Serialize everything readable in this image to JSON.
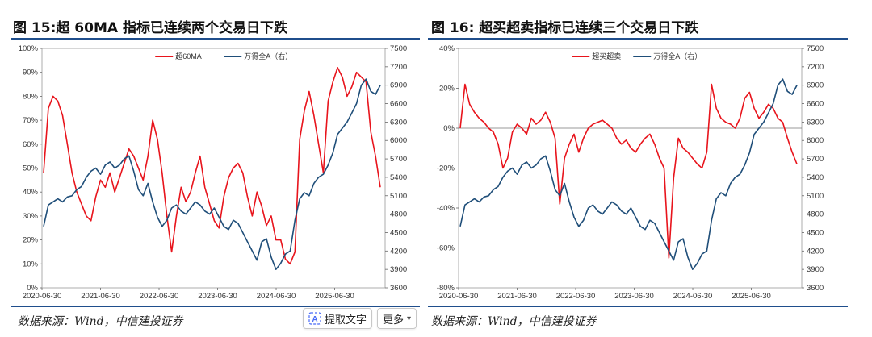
{
  "panels": [
    {
      "title": "图 15:超 60MA 指标已连续两个交易日下跌",
      "source": "数据来源：Wind，中信建投证券",
      "chart_data": {
        "type": "line",
        "left_axis_ticks": [
          "0%",
          "10%",
          "20%",
          "30%",
          "40%",
          "50%",
          "60%",
          "70%",
          "80%",
          "90%",
          "100%"
        ],
        "left_ylim": [
          0,
          100
        ],
        "right_axis_ticks": [
          "3600",
          "3900",
          "4200",
          "4500",
          "4800",
          "5100",
          "5400",
          "5700",
          "6000",
          "6300",
          "6600",
          "6900",
          "7200",
          "7500"
        ],
        "right_ylim": [
          3600,
          7500
        ],
        "x_ticks": [
          "2020-06-30",
          "2021-06-30",
          "2022-06-30",
          "2023-06-30",
          "2024-06-30",
          "2025-06-30"
        ],
        "legend_position": "top",
        "series": [
          {
            "name": "超60MA",
            "axis": "left",
            "color": "#e8141c",
            "values": [
              48,
              75,
              80,
              78,
              72,
              60,
              48,
              40,
              35,
              30,
              28,
              38,
              45,
              42,
              48,
              40,
              46,
              52,
              58,
              55,
              50,
              45,
              55,
              70,
              62,
              48,
              30,
              15,
              30,
              42,
              36,
              40,
              48,
              55,
              42,
              35,
              28,
              25,
              38,
              46,
              50,
              52,
              48,
              38,
              30,
              40,
              34,
              26,
              30,
              20,
              20,
              12,
              10,
              15,
              62,
              74,
              82,
              72,
              60,
              48,
              78,
              86,
              92,
              88,
              80,
              84,
              90,
              88,
              86,
              65,
              55,
              42
            ]
          },
          {
            "name": "万得全A（右）",
            "axis": "right",
            "color": "#1f4e79",
            "values": [
              4600,
              4950,
              5000,
              5050,
              5000,
              5080,
              5100,
              5200,
              5250,
              5400,
              5500,
              5550,
              5450,
              5600,
              5650,
              5550,
              5600,
              5700,
              5750,
              5500,
              5200,
              5100,
              5300,
              5000,
              4750,
              4600,
              4700,
              4900,
              4950,
              4850,
              4800,
              4900,
              5000,
              4950,
              4850,
              4800,
              4900,
              4750,
              4600,
              4550,
              4700,
              4650,
              4500,
              4350,
              4200,
              4050,
              4350,
              4400,
              4100,
              3900,
              4000,
              4150,
              4200,
              4700,
              5050,
              5150,
              5100,
              5300,
              5400,
              5450,
              5600,
              5800,
              6100,
              6200,
              6300,
              6450,
              6600,
              6900,
              7000,
              6800,
              6750,
              6900
            ]
          }
        ]
      }
    },
    {
      "title": "图 16:  超买超卖指标已连续三个交易日下跌",
      "source": "数据来源：Wind，中信建投证券",
      "chart_data": {
        "type": "line",
        "left_axis_ticks": [
          "-80%",
          "-60%",
          "-40%",
          "-20%",
          "0%",
          "20%",
          "40%"
        ],
        "left_ylim": [
          -80,
          40
        ],
        "right_axis_ticks": [
          "3600",
          "3900",
          "4200",
          "4500",
          "4800",
          "5100",
          "5400",
          "5700",
          "6000",
          "6300",
          "6600",
          "6900",
          "7200",
          "7500"
        ],
        "right_ylim": [
          3600,
          7500
        ],
        "x_ticks": [
          "2020-06-30",
          "2021-06-30",
          "2022-06-30",
          "2023-06-30",
          "2024-06-30",
          "2025-06-30"
        ],
        "legend_position": "top",
        "series": [
          {
            "name": "超买超卖",
            "axis": "left",
            "color": "#e8141c",
            "values": [
              0,
              22,
              12,
              8,
              5,
              3,
              0,
              -2,
              -8,
              -20,
              -15,
              -2,
              2,
              0,
              -3,
              5,
              2,
              4,
              8,
              3,
              -5,
              -38,
              -15,
              -8,
              -3,
              -12,
              -5,
              0,
              2,
              3,
              4,
              2,
              0,
              -5,
              -8,
              -6,
              -10,
              -12,
              -8,
              -5,
              -3,
              -8,
              -15,
              -20,
              -65,
              -25,
              -5,
              -10,
              -12,
              -15,
              -18,
              -20,
              -12,
              22,
              10,
              5,
              3,
              2,
              0,
              5,
              15,
              18,
              10,
              5,
              8,
              12,
              10,
              5,
              3,
              -5,
              -12,
              -18
            ]
          },
          {
            "name": "万得全A（右）",
            "axis": "right",
            "color": "#1f4e79",
            "values": [
              4600,
              4950,
              5000,
              5050,
              5000,
              5080,
              5100,
              5200,
              5250,
              5400,
              5500,
              5550,
              5450,
              5600,
              5650,
              5550,
              5600,
              5700,
              5750,
              5500,
              5200,
              5100,
              5300,
              5000,
              4750,
              4600,
              4700,
              4900,
              4950,
              4850,
              4800,
              4900,
              5000,
              4950,
              4850,
              4800,
              4900,
              4750,
              4600,
              4550,
              4700,
              4650,
              4500,
              4350,
              4200,
              4050,
              4350,
              4400,
              4100,
              3900,
              4000,
              4150,
              4200,
              4700,
              5050,
              5150,
              5100,
              5300,
              5400,
              5450,
              5600,
              5800,
              6100,
              6200,
              6300,
              6450,
              6600,
              6900,
              7000,
              6800,
              6750,
              6900
            ]
          }
        ]
      }
    }
  ],
  "toolbar": {
    "extract_text_label": "提取文字",
    "more_label": "更多"
  }
}
